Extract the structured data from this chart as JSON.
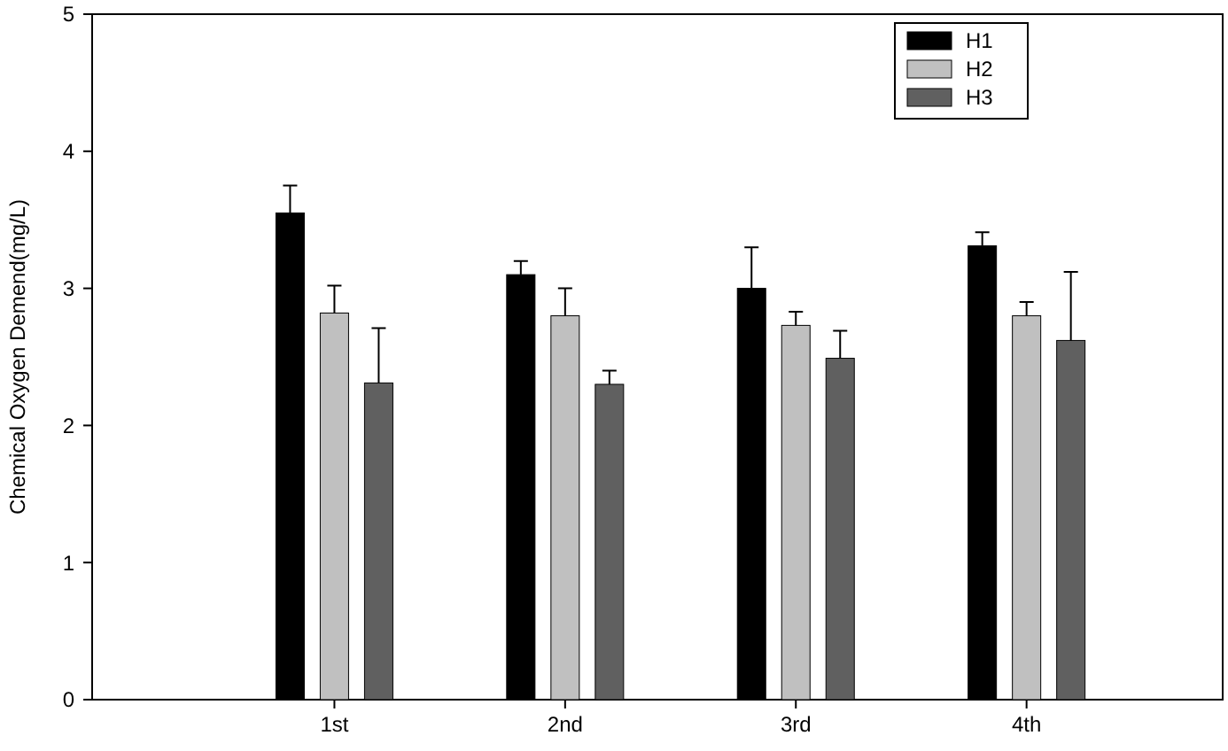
{
  "chart_data": {
    "type": "bar",
    "ylabel": "Chemical Oxygen Demend(mg/L)",
    "categories": [
      "1st",
      "2nd",
      "3rd",
      "4th"
    ],
    "series": [
      {
        "name": "H1",
        "color": "#000000",
        "values": [
          3.55,
          3.1,
          3.0,
          3.31
        ],
        "errors": [
          0.2,
          0.1,
          0.3,
          0.1
        ]
      },
      {
        "name": "H2",
        "color": "#c0c0c0",
        "values": [
          2.82,
          2.8,
          2.73,
          2.8
        ],
        "errors": [
          0.2,
          0.2,
          0.1,
          0.1
        ]
      },
      {
        "name": "H3",
        "color": "#606060",
        "values": [
          2.31,
          2.3,
          2.49,
          2.62
        ],
        "errors": [
          0.4,
          0.1,
          0.2,
          0.5
        ]
      }
    ],
    "ylim": [
      0,
      5
    ],
    "yticks": [
      0,
      1,
      2,
      3,
      4,
      5
    ],
    "legend": "top right",
    "grid": false
  }
}
